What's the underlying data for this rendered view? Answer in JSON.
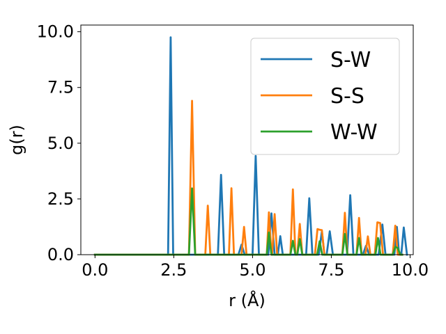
{
  "chart_data": {
    "type": "line",
    "xlabel": "r (Å)",
    "ylabel": "g(r)",
    "xlim": [
      -0.45,
      10.1
    ],
    "ylim": [
      0,
      10.3
    ],
    "xticks": [
      0.0,
      2.5,
      5.0,
      7.5,
      10.0
    ],
    "xtick_labels": [
      "0.0",
      "2.5",
      "5.0",
      "7.5",
      "10.0"
    ],
    "yticks": [
      0.0,
      2.5,
      5.0,
      7.5,
      10.0
    ],
    "ytick_labels": [
      "0.0",
      "2.5",
      "5.0",
      "7.5",
      "10.0"
    ],
    "grid": false,
    "legend_position": "top-right",
    "series": [
      {
        "name": "S-W",
        "color": "#1f77b4",
        "points": [
          [
            0.0,
            0
          ],
          [
            2.25,
            0
          ],
          [
            2.32,
            0
          ],
          [
            2.4,
            9.75
          ],
          [
            2.48,
            0
          ],
          [
            3.9,
            0
          ],
          [
            4.0,
            3.58
          ],
          [
            4.1,
            0
          ],
          [
            4.55,
            0
          ],
          [
            4.65,
            0.45
          ],
          [
            4.75,
            0
          ],
          [
            5.0,
            0
          ],
          [
            5.1,
            4.43
          ],
          [
            5.2,
            0
          ],
          [
            5.5,
            0
          ],
          [
            5.6,
            1.85
          ],
          [
            5.7,
            0
          ],
          [
            5.8,
            0
          ],
          [
            5.88,
            0.83
          ],
          [
            5.96,
            0
          ],
          [
            6.7,
            0
          ],
          [
            6.8,
            2.53
          ],
          [
            6.9,
            0
          ],
          [
            7.1,
            0
          ],
          [
            7.2,
            1.05
          ],
          [
            7.28,
            0
          ],
          [
            7.35,
            0
          ],
          [
            7.45,
            1.05
          ],
          [
            7.55,
            0
          ],
          [
            8.0,
            0
          ],
          [
            8.1,
            2.67
          ],
          [
            8.2,
            0
          ],
          [
            8.5,
            0
          ],
          [
            8.6,
            0.4
          ],
          [
            8.7,
            0
          ],
          [
            9.0,
            0
          ],
          [
            9.12,
            1.35
          ],
          [
            9.22,
            0
          ],
          [
            9.5,
            0
          ],
          [
            9.58,
            1.25
          ],
          [
            9.65,
            0
          ],
          [
            9.72,
            0
          ],
          [
            9.8,
            1.22
          ],
          [
            9.9,
            0
          ]
        ]
      },
      {
        "name": "S-S",
        "color": "#ff7f0e",
        "points": [
          [
            0.0,
            0
          ],
          [
            2.98,
            0
          ],
          [
            3.08,
            6.9
          ],
          [
            3.18,
            0
          ],
          [
            3.5,
            0
          ],
          [
            3.58,
            2.2
          ],
          [
            3.66,
            0
          ],
          [
            4.25,
            0
          ],
          [
            4.33,
            2.98
          ],
          [
            4.41,
            0
          ],
          [
            4.65,
            0
          ],
          [
            4.73,
            1.25
          ],
          [
            4.81,
            0
          ],
          [
            5.45,
            0
          ],
          [
            5.52,
            1.9
          ],
          [
            5.6,
            0
          ],
          [
            5.62,
            0
          ],
          [
            5.7,
            1.82
          ],
          [
            5.78,
            0
          ],
          [
            6.2,
            0
          ],
          [
            6.28,
            2.93
          ],
          [
            6.36,
            0
          ],
          [
            6.42,
            0
          ],
          [
            6.5,
            1.38
          ],
          [
            6.58,
            0
          ],
          [
            6.98,
            0
          ],
          [
            7.06,
            1.15
          ],
          [
            7.12,
            1.12
          ],
          [
            7.2,
            1.1
          ],
          [
            7.28,
            0
          ],
          [
            7.85,
            0
          ],
          [
            7.93,
            1.88
          ],
          [
            8.01,
            0
          ],
          [
            8.3,
            0
          ],
          [
            8.38,
            1.65
          ],
          [
            8.46,
            0
          ],
          [
            8.58,
            0
          ],
          [
            8.66,
            0.82
          ],
          [
            8.74,
            0
          ],
          [
            8.88,
            0
          ],
          [
            8.96,
            1.45
          ],
          [
            9.05,
            1.42
          ],
          [
            9.14,
            0
          ],
          [
            9.45,
            0
          ],
          [
            9.53,
            1.3
          ],
          [
            9.61,
            0
          ],
          [
            9.75,
            0
          ]
        ]
      },
      {
        "name": "W-W",
        "color": "#2ca02c",
        "points": [
          [
            0.0,
            0
          ],
          [
            2.98,
            0
          ],
          [
            3.08,
            2.97
          ],
          [
            3.18,
            0
          ],
          [
            5.45,
            0
          ],
          [
            5.52,
            1.0
          ],
          [
            5.6,
            0
          ],
          [
            6.2,
            0
          ],
          [
            6.28,
            0.62
          ],
          [
            6.36,
            0
          ],
          [
            6.42,
            0
          ],
          [
            6.5,
            0.7
          ],
          [
            6.58,
            0
          ],
          [
            7.05,
            0
          ],
          [
            7.13,
            0.6
          ],
          [
            7.21,
            0
          ],
          [
            7.85,
            0
          ],
          [
            7.93,
            0.93
          ],
          [
            8.01,
            0
          ],
          [
            8.3,
            0
          ],
          [
            8.38,
            0.75
          ],
          [
            8.46,
            0
          ],
          [
            8.9,
            0
          ],
          [
            8.98,
            0.75
          ],
          [
            9.06,
            0
          ],
          [
            9.45,
            0
          ],
          [
            9.53,
            0.35
          ],
          [
            9.61,
            0.3
          ],
          [
            9.69,
            0
          ],
          [
            9.75,
            0
          ]
        ]
      }
    ]
  }
}
